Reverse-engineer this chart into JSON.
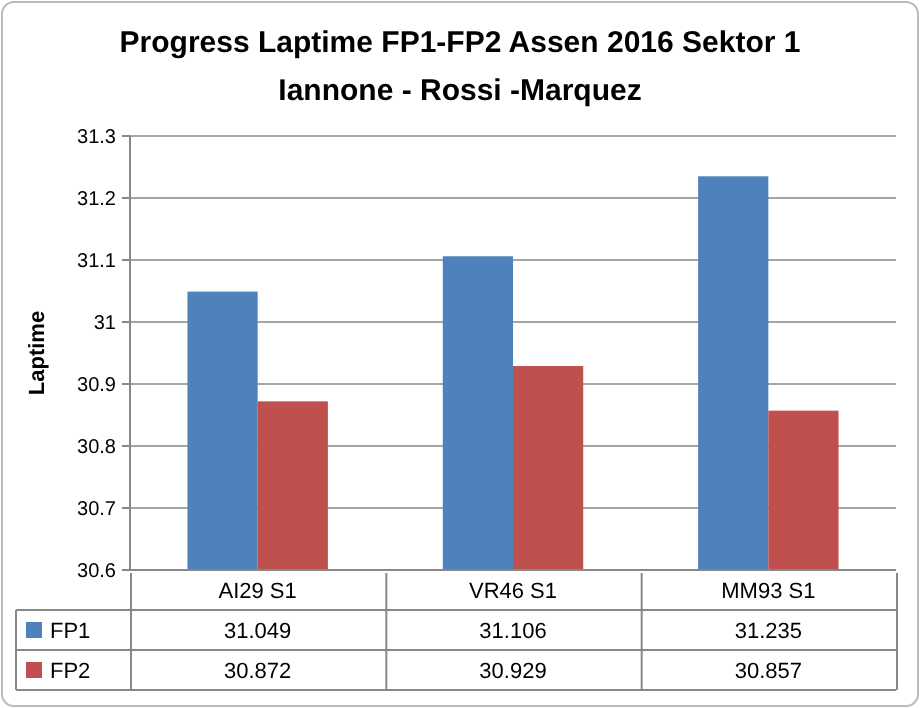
{
  "chart_data": {
    "type": "bar",
    "title": "Progress Laptime FP1-FP2 Assen 2016 Sektor 1",
    "subtitle": "Iannone - Rossi -Marquez",
    "ylabel": "Laptime",
    "categories": [
      "AI29 S1",
      "VR46  S1",
      "MM93 S1"
    ],
    "series": [
      {
        "name": "FP1",
        "color": "#4f81bd",
        "values": [
          31.049,
          31.106,
          31.235
        ]
      },
      {
        "name": "FP2",
        "color": "#c0504d",
        "values": [
          30.872,
          30.929,
          30.857
        ]
      }
    ],
    "ylim": [
      30.6,
      31.3
    ],
    "yticks": [
      30.6,
      30.7,
      30.8,
      30.9,
      31,
      31.1,
      31.2,
      31.3
    ],
    "grid": "y",
    "legend": "bottom left",
    "data_labels": true
  }
}
